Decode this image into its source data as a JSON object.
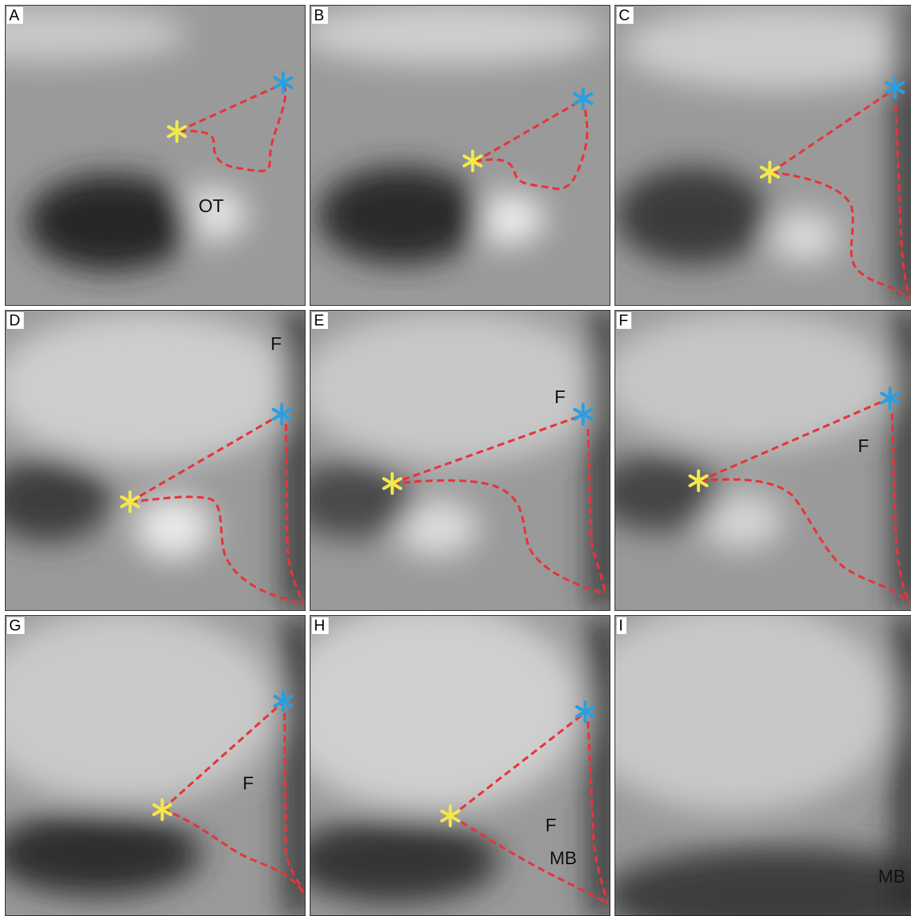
{
  "panels": [
    {
      "letter": "A",
      "labels": [
        "OT"
      ]
    },
    {
      "letter": "B",
      "labels": []
    },
    {
      "letter": "C",
      "labels": []
    },
    {
      "letter": "D",
      "labels": [
        "F"
      ]
    },
    {
      "letter": "E",
      "labels": [
        "F"
      ]
    },
    {
      "letter": "F",
      "labels": [
        "F"
      ]
    },
    {
      "letter": "G",
      "labels": [
        "F"
      ]
    },
    {
      "letter": "H",
      "labels": [
        "F",
        "MB"
      ]
    },
    {
      "letter": "I",
      "labels": [
        "MB"
      ]
    }
  ],
  "colors": {
    "outline": "#e8343a",
    "asterisk_yellow": "#f2e94a",
    "asterisk_blue": "#2a9fe0",
    "frame": "#ffffff"
  },
  "icons": {
    "marker": "asterisk-icon"
  }
}
